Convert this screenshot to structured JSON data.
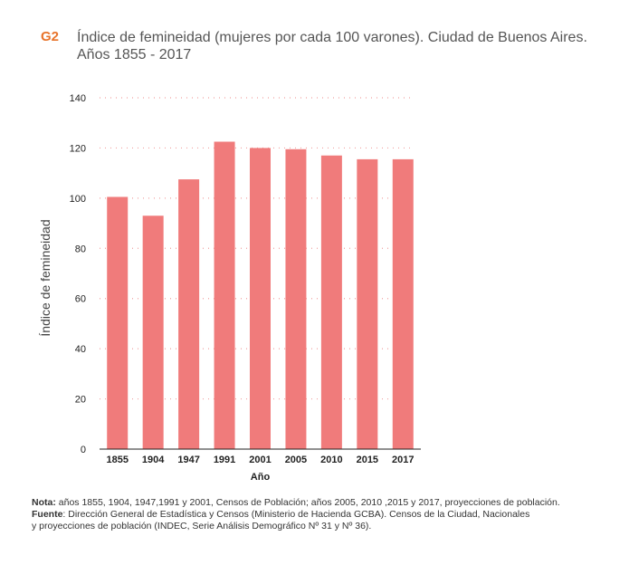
{
  "header": {
    "tag": "G2",
    "title_line1": "Índice de femineidad (mujeres por cada 100 varones). Ciudad de Buenos Aires.",
    "title_line2": "Años 1855 - 2017"
  },
  "chart_data": {
    "type": "bar",
    "title": "Índice de femineidad (mujeres por cada 100 varones). Ciudad de Buenos Aires. Años 1855 - 2017",
    "categories": [
      "1855",
      "1904",
      "1947",
      "1991",
      "2001",
      "2005",
      "2010",
      "2015",
      "2017"
    ],
    "values": [
      100.5,
      93,
      107.5,
      122.5,
      120,
      119.5,
      117,
      115.5,
      115.5
    ],
    "xlabel": "Año",
    "ylabel": "Índice de femineidad",
    "ylim": [
      0,
      140
    ],
    "yticks": [
      "0",
      "20",
      "40",
      "60",
      "80",
      "100",
      "120",
      "140"
    ],
    "grid": true,
    "bar_color": "#f07b7b",
    "grid_color": "#f0a0a0"
  },
  "notes": {
    "nota_label": "Nota:",
    "nota_text": " años 1855, 1904, 1947,1991 y 2001, Censos de Población;  años 2005, 2010 ,2015 y 2017, proyecciones de población.",
    "fuente_label": "Fuente",
    "fuente_text": ": Dirección General de Estadística y Censos (Ministerio de Hacienda GCBA). Censos de la Ciudad, Nacionales",
    "fuente_text2": "y proyecciones de población (INDEC, Serie Análisis Demográfico Nº 31 y Nº 36)."
  }
}
